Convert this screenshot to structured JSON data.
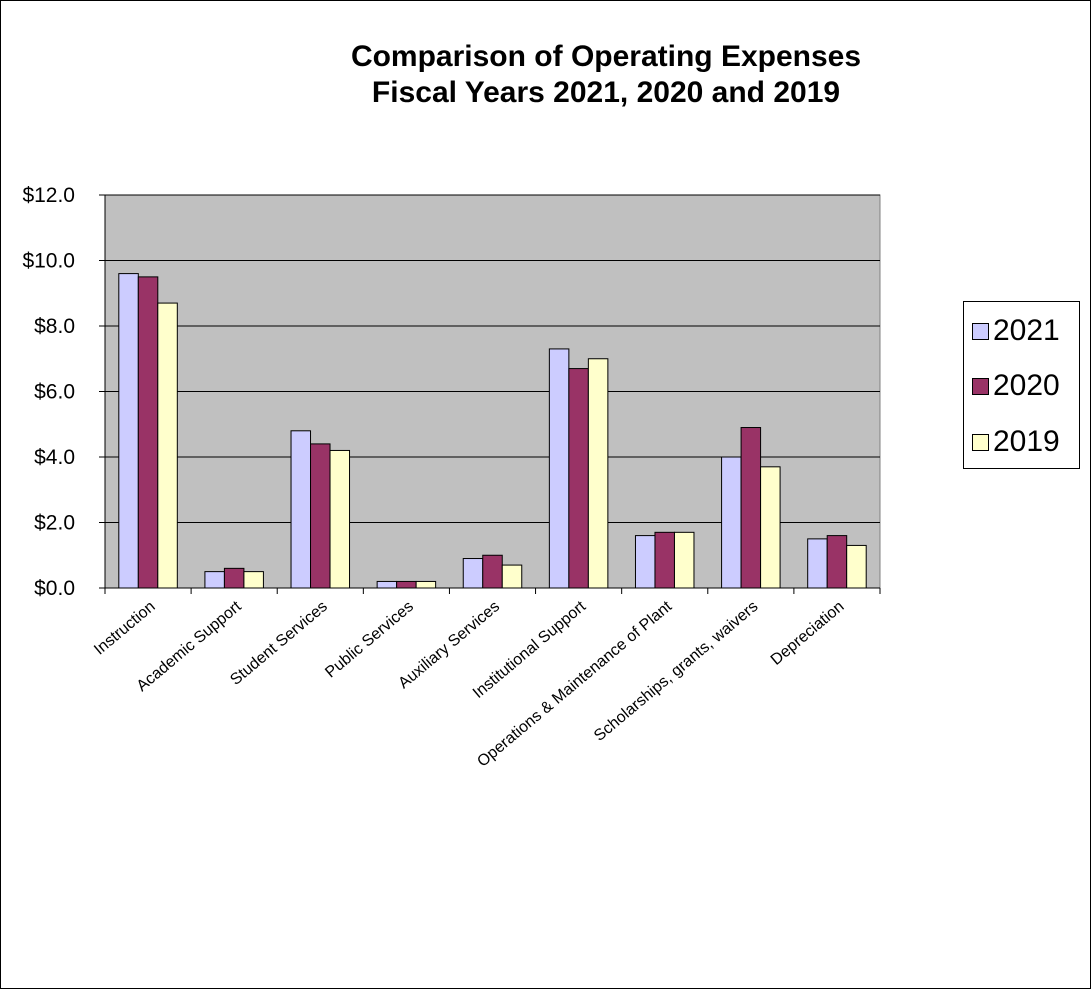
{
  "chart_data": {
    "type": "bar",
    "title": "Comparison of Operating Expenses",
    "subtitle": "Fiscal Years 2021, 2020 and 2019",
    "categories": [
      "Instruction",
      "Academic Support",
      "Student Services",
      "Public Services",
      "Auxiliary Services",
      "Institutional Support",
      "Operations & Maintenance of Plant",
      "Scholarships, grants, waivers",
      "Depreciation"
    ],
    "series": [
      {
        "name": "2021",
        "color": "#ccccff",
        "values": [
          9.6,
          0.5,
          4.8,
          0.2,
          0.9,
          7.3,
          1.6,
          4.0,
          1.5
        ]
      },
      {
        "name": "2020",
        "color": "#993366",
        "values": [
          9.5,
          0.6,
          4.4,
          0.2,
          1.0,
          6.7,
          1.7,
          4.9,
          1.6
        ]
      },
      {
        "name": "2019",
        "color": "#ffffcc",
        "values": [
          8.7,
          0.5,
          4.2,
          0.2,
          0.7,
          7.0,
          1.7,
          3.7,
          1.3
        ]
      }
    ],
    "y_ticks": [
      "$0.0",
      "$2.0",
      "$4.0",
      "$6.0",
      "$8.0",
      "$10.0",
      "$12.0"
    ],
    "ylim": [
      0,
      12
    ],
    "xlabel": "",
    "ylabel": "",
    "grid": true,
    "legend_position": "right",
    "plot_background": "#c0c0c0"
  }
}
